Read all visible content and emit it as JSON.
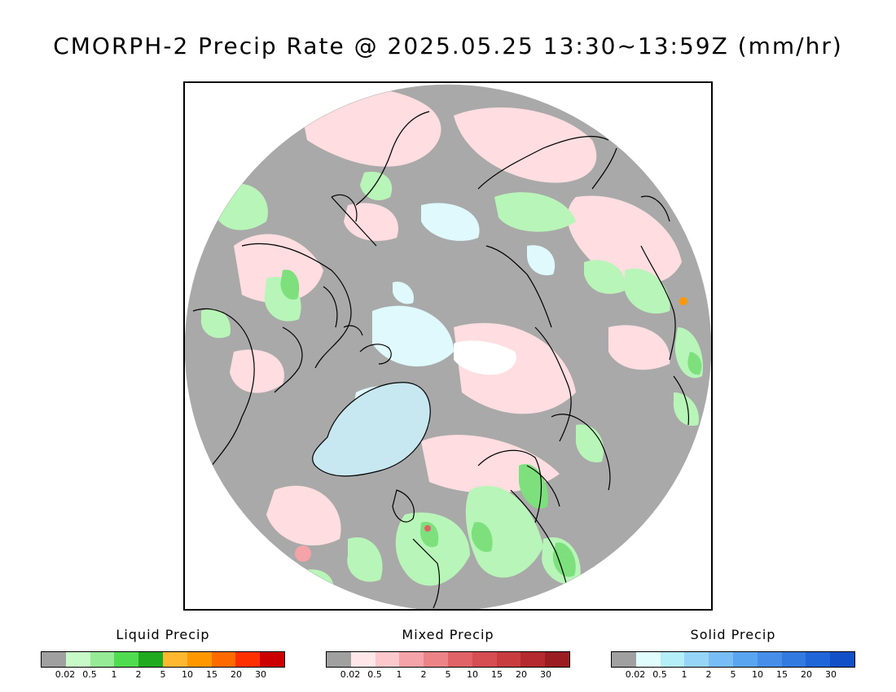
{
  "title": "CMORPH-2 Precip Rate @ 2025.05.25 13:30~13:59Z (mm/hr)",
  "map": {
    "projection": "north-polar-stereographic",
    "background_color": "#a9a9a9",
    "coastline_color": "#000000",
    "sea_ice_color": "#ffffff",
    "liquid_light": "#b8f5b8",
    "liquid_mid": "#7de07d",
    "mixed_light": "#ffdde0",
    "mixed_mid": "#f5b6bb",
    "solid_light": "#dff9fc",
    "solid_mid": "#9ad9f5"
  },
  "legends": [
    {
      "title": "Liquid Precip",
      "colors": [
        "#a0a0a0",
        "#c8fac8",
        "#96eb96",
        "#50dc50",
        "#20aa20",
        "#ffb830",
        "#ff9800",
        "#ff6a00",
        "#ff3000",
        "#cc0000"
      ],
      "ticks": [
        "0.02",
        "0.5",
        "1",
        "2",
        "5",
        "10",
        "15",
        "20",
        "30"
      ]
    },
    {
      "title": "Mixed Precip",
      "colors": [
        "#a0a0a0",
        "#ffe6e8",
        "#fcc8cc",
        "#f4a3a8",
        "#ec8387",
        "#df6367",
        "#d64d52",
        "#c83c40",
        "#b42a2e",
        "#9a1d22"
      ],
      "ticks": [
        "0.02",
        "0.5",
        "1",
        "2",
        "5",
        "10",
        "15",
        "20",
        "30"
      ]
    },
    {
      "title": "Solid Precip",
      "colors": [
        "#a0a0a0",
        "#e1fcfd",
        "#b4eef8",
        "#96d5f8",
        "#78bdf5",
        "#5aa5f0",
        "#468ee8",
        "#327ae0",
        "#2066d8",
        "#1250c8"
      ],
      "ticks": [
        "0.02",
        "0.5",
        "1",
        "2",
        "5",
        "10",
        "15",
        "20",
        "30"
      ]
    }
  ]
}
